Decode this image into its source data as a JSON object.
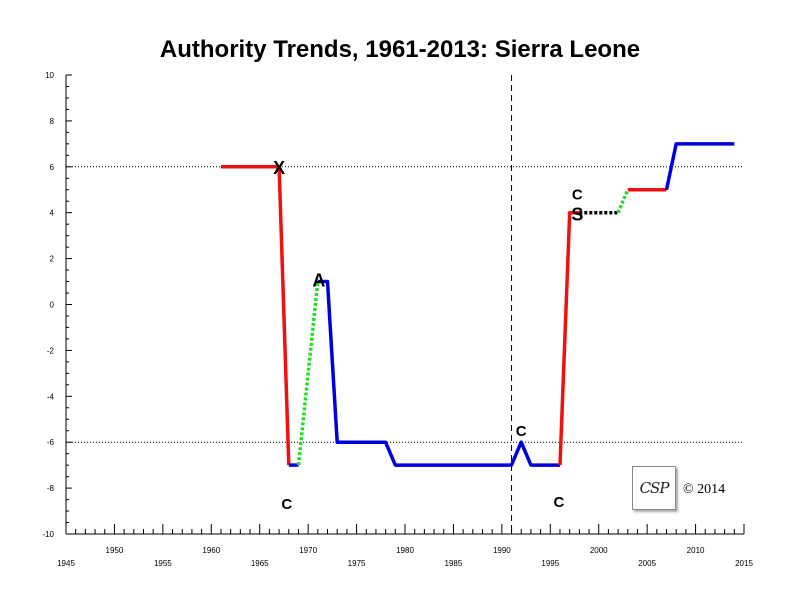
{
  "chart_data": {
    "type": "line",
    "title": "Authority Trends, 1961-2013: Sierra Leone",
    "xlabel": "",
    "ylabel": "",
    "xlim": [
      1945,
      2015
    ],
    "ylim": [
      -10,
      10
    ],
    "x_ticks": [
      1945,
      1950,
      1955,
      1960,
      1965,
      1970,
      1975,
      1980,
      1985,
      1990,
      1995,
      2000,
      2005,
      2010,
      2015
    ],
    "y_ticks": [
      10,
      8,
      6,
      4,
      2,
      0,
      -2,
      -4,
      -6,
      -8,
      -10
    ],
    "reference_lines": {
      "horizontal": [
        6,
        -6
      ],
      "vertical": [
        1991
      ]
    },
    "segments": [
      {
        "color": "#ee1111",
        "style": "solid",
        "points": [
          [
            1961,
            6
          ],
          [
            1967,
            6
          ]
        ]
      },
      {
        "color": "#ee1111",
        "style": "solid",
        "points": [
          [
            1967,
            6
          ],
          [
            1968,
            -7
          ]
        ]
      },
      {
        "color": "#0000dd",
        "style": "solid",
        "points": [
          [
            1968,
            -7
          ],
          [
            1969,
            -7
          ]
        ]
      },
      {
        "color": "#22dd22",
        "style": "dotted",
        "points": [
          [
            1969,
            -7
          ],
          [
            1971,
            1
          ]
        ]
      },
      {
        "color": "#0000dd",
        "style": "solid",
        "points": [
          [
            1971,
            1
          ],
          [
            1972,
            1
          ],
          [
            1973,
            -6
          ],
          [
            1978,
            -6
          ],
          [
            1979,
            -7
          ],
          [
            1991,
            -7
          ],
          [
            1992,
            -6
          ],
          [
            1993,
            -7
          ],
          [
            1996,
            -7
          ]
        ]
      },
      {
        "color": "#ee1111",
        "style": "solid",
        "points": [
          [
            1996,
            -7
          ],
          [
            1997,
            4
          ],
          [
            1998,
            4
          ]
        ]
      },
      {
        "color": "#000000",
        "style": "dotted",
        "points": [
          [
            1998,
            4
          ],
          [
            2002,
            4
          ]
        ]
      },
      {
        "color": "#22dd22",
        "style": "dotted",
        "points": [
          [
            2002,
            4
          ],
          [
            2003,
            5
          ]
        ]
      },
      {
        "color": "#ee1111",
        "style": "solid",
        "points": [
          [
            2003,
            5
          ],
          [
            2007,
            5
          ]
        ]
      },
      {
        "color": "#0000dd",
        "style": "solid",
        "points": [
          [
            2007,
            5
          ],
          [
            2008,
            7
          ],
          [
            2014,
            7
          ]
        ]
      }
    ],
    "annotations": [
      {
        "text": "X",
        "x": 1967,
        "y": 6
      },
      {
        "text": "C",
        "x": 1968,
        "y": -7
      },
      {
        "text": "A",
        "x": 1971,
        "y": 1
      },
      {
        "text": "C",
        "x": 1992,
        "y": -6
      },
      {
        "text": "C",
        "x": 1996,
        "y": -7
      },
      {
        "text": "C",
        "x": 1998,
        "y": 4
      },
      {
        "text": "S",
        "x": 1998,
        "y": 4
      }
    ]
  },
  "logo": {
    "text": "CSP"
  },
  "copyright": "© 2014"
}
